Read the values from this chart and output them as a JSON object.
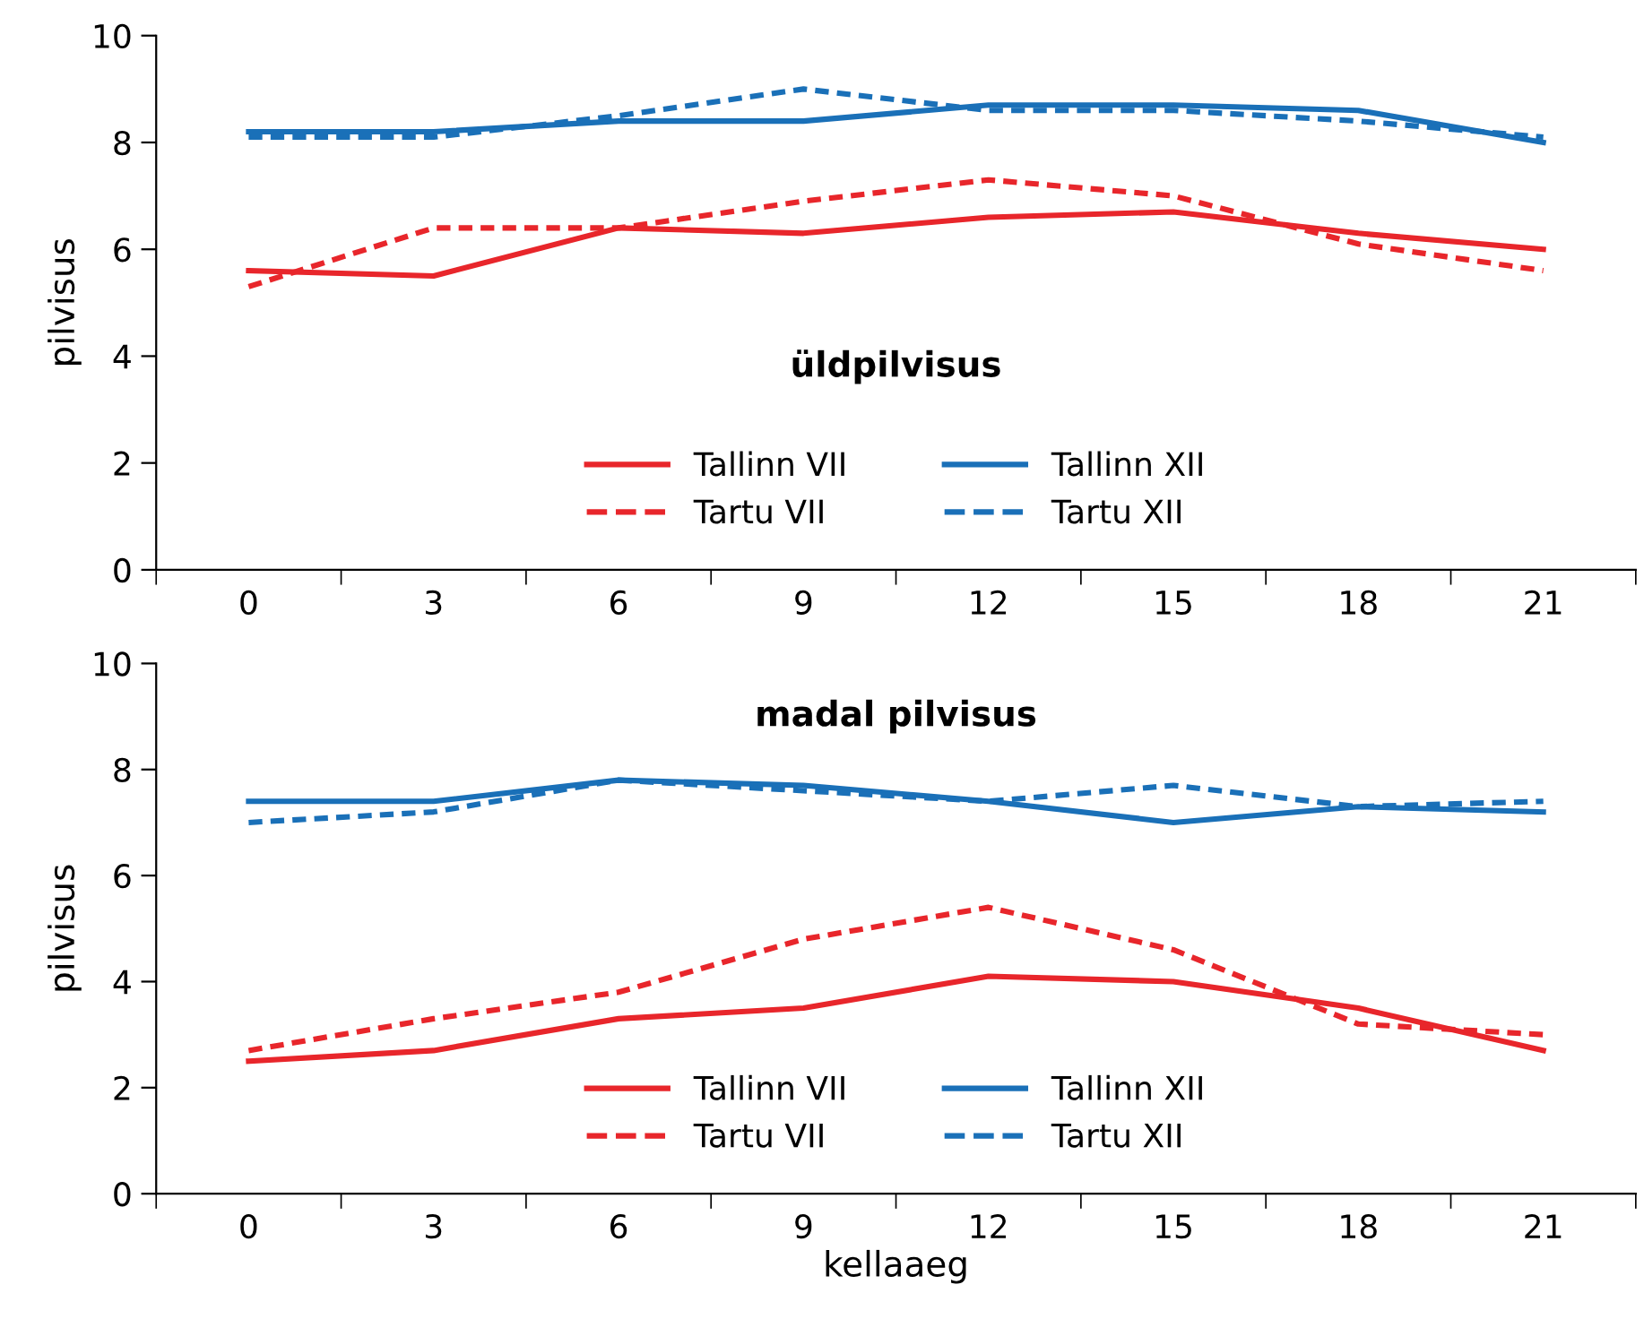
{
  "chart_data": [
    {
      "type": "line",
      "title": "üldpilvisus",
      "ylabel": "pilvisus",
      "categories": [
        "0",
        "3",
        "6",
        "9",
        "12",
        "15",
        "18",
        "21"
      ],
      "ylim": [
        0,
        10
      ],
      "yticks": [
        0,
        2,
        4,
        6,
        8,
        10
      ],
      "legend": "bottom",
      "series": [
        {
          "name": "Tallinn VII",
          "color": "#e8262b",
          "line_style": "solid",
          "values": [
            5.6,
            5.5,
            6.4,
            6.3,
            6.6,
            6.7,
            6.3,
            6.0
          ]
        },
        {
          "name": "Tallinn XII",
          "color": "#1a70b8",
          "line_style": "solid",
          "values": [
            8.2,
            8.2,
            8.4,
            8.4,
            8.7,
            8.7,
            8.6,
            8.0
          ]
        },
        {
          "name": "Tartu VII",
          "color": "#e8262b",
          "line_style": "dashed",
          "values": [
            5.3,
            6.4,
            6.4,
            6.9,
            7.3,
            7.0,
            6.1,
            5.6
          ]
        },
        {
          "name": "Tartu XII",
          "color": "#1a70b8",
          "line_style": "dashed",
          "values": [
            8.1,
            8.1,
            8.5,
            9.0,
            8.6,
            8.6,
            8.4,
            8.1
          ]
        }
      ]
    },
    {
      "type": "line",
      "title": "madal pilvisus",
      "ylabel": "pilvisus",
      "xlabel": "kellaaeg",
      "categories": [
        "0",
        "3",
        "6",
        "9",
        "12",
        "15",
        "18",
        "21"
      ],
      "ylim": [
        0,
        10
      ],
      "yticks": [
        0,
        2,
        4,
        6,
        8,
        10
      ],
      "legend": "bottom",
      "series": [
        {
          "name": "Tallinn VII",
          "color": "#e8262b",
          "line_style": "solid",
          "values": [
            2.5,
            2.7,
            3.3,
            3.5,
            4.1,
            4.0,
            3.5,
            2.7
          ]
        },
        {
          "name": "Tallinn XII",
          "color": "#1a70b8",
          "line_style": "solid",
          "values": [
            7.4,
            7.4,
            7.8,
            7.7,
            7.4,
            7.0,
            7.3,
            7.2
          ]
        },
        {
          "name": "Tartu VII",
          "color": "#e8262b",
          "line_style": "dashed",
          "values": [
            2.7,
            3.3,
            3.8,
            4.8,
            5.4,
            4.6,
            3.2,
            3.0
          ]
        },
        {
          "name": "Tartu XII",
          "color": "#1a70b8",
          "line_style": "dashed",
          "values": [
            7.0,
            7.2,
            7.8,
            7.6,
            7.4,
            7.7,
            7.3,
            7.4
          ]
        }
      ]
    }
  ]
}
